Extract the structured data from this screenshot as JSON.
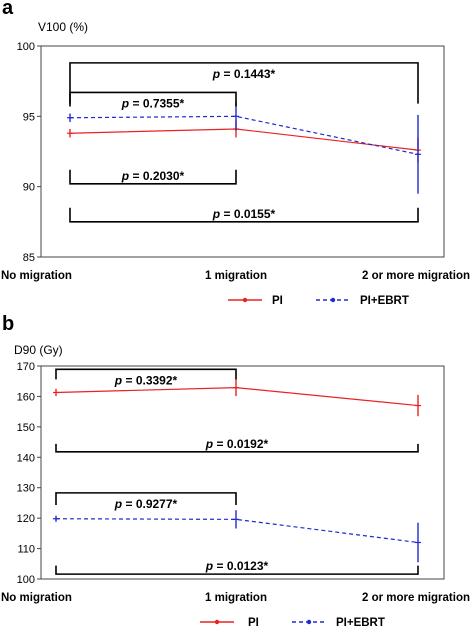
{
  "panels": [
    {
      "letter": "a"
    },
    {
      "letter": "b"
    }
  ],
  "chart_data": [
    {
      "type": "line",
      "ylabel": "V100 (%)",
      "ylim": [
        85,
        100
      ],
      "yticks": [
        "85",
        "90",
        "95",
        "100"
      ],
      "categories": [
        "No migration",
        "1 migration",
        "2 or more migration"
      ],
      "series": [
        {
          "name": "PI",
          "color": "#e8231f",
          "dash": "solid",
          "values": [
            93.8,
            94.1,
            92.6
          ],
          "err": [
            0.3,
            0.6,
            0.9
          ]
        },
        {
          "name": "PI+EBRT",
          "color": "#1f2ad0",
          "dash": "dashed",
          "values": [
            94.9,
            95.0,
            92.3
          ],
          "err": [
            0.3,
            1.0,
            2.8
          ]
        }
      ],
      "brackets": [
        {
          "label": "p = 0.1443*",
          "from": 0,
          "to": 2,
          "y": 98.8,
          "dir": "down",
          "tick_to": 95.9
        },
        {
          "label": "p = 0.7355*",
          "from": 0,
          "to": 1,
          "y": 96.7,
          "dir": "down",
          "tick_to": 95.7
        },
        {
          "label": "p = 0.2030*",
          "from": 0,
          "to": 1,
          "y": 90.2,
          "dir": "up",
          "tick_to": 91.2
        },
        {
          "label": "p = 0.0155*",
          "from": 0,
          "to": 2,
          "y": 87.5,
          "dir": "up",
          "tick_to": 88.5
        }
      ]
    },
    {
      "type": "line",
      "ylabel": "D90 (Gy)",
      "ylim": [
        100,
        170
      ],
      "yticks": [
        "100",
        "110",
        "120",
        "130",
        "140",
        "150",
        "160",
        "170"
      ],
      "categories": [
        "No migration",
        "1 migration",
        "2 or more migration"
      ],
      "series": [
        {
          "name": "PI",
          "color": "#e8231f",
          "dash": "solid",
          "values": [
            161.3,
            162.9,
            157.0
          ],
          "err": [
            1.2,
            2.8,
            3.5
          ]
        },
        {
          "name": "PI+EBRT",
          "color": "#1f2ad0",
          "dash": "dashed",
          "values": [
            119.8,
            119.6,
            112.0
          ],
          "err": [
            1.0,
            3.0,
            6.5
          ]
        }
      ],
      "brackets": [
        {
          "label": "p = 0.3392*",
          "from": 0,
          "to": 1,
          "y": 168.9,
          "dir": "down",
          "tick_to": 165.6
        },
        {
          "label": "p = 0.0192*",
          "from": 0,
          "to": 2,
          "y": 141.8,
          "dir": "up",
          "tick_to": 144.4
        },
        {
          "label": "p = 0.9277*",
          "from": 0,
          "to": 1,
          "y": 128.3,
          "dir": "down",
          "tick_to": 124.3
        },
        {
          "label": "p = 0.0123*",
          "from": 0,
          "to": 2,
          "y": 101.6,
          "dir": "up",
          "tick_to": 104.4
        }
      ]
    }
  ],
  "legend": {
    "pi": "PI",
    "ebrt": "PI+EBRT"
  }
}
